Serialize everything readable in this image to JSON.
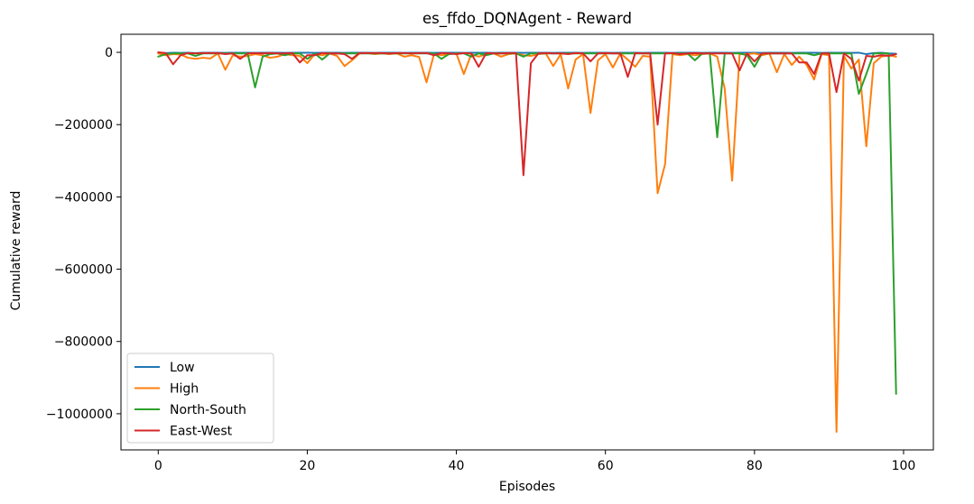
{
  "chart_data": {
    "type": "line",
    "title": "es_ffdo_DQNAgent - Reward",
    "xlabel": "Episodes",
    "ylabel": "Cumulative reward",
    "xlim": [
      -5,
      104
    ],
    "ylim": [
      -1100000,
      50000
    ],
    "xticks": [
      0,
      20,
      40,
      60,
      80,
      100
    ],
    "yticks": [
      0,
      -200000,
      -400000,
      -600000,
      -800000,
      -1000000
    ],
    "ytick_labels": [
      "0",
      "−200000",
      "−400000",
      "−600000",
      "−800000",
      "−1000000"
    ],
    "xtick_labels": [
      "0",
      "20",
      "40",
      "60",
      "80",
      "100"
    ],
    "legend_position": "lower-left",
    "grid": false,
    "series": [
      {
        "name": "Low",
        "color": "#1f77b4",
        "values": [
          -1000,
          -2000,
          -1000,
          -1500,
          -1000,
          -2000,
          -1000,
          -1000,
          -1000,
          -1500,
          -1000,
          -1000,
          -1000,
          -1500,
          -1000,
          -1000,
          -1000,
          -1500,
          -1000,
          -1000,
          -1000,
          -1500,
          -1000,
          -1000,
          -1000,
          -1500,
          -1000,
          -1000,
          -1000,
          -1500,
          -1000,
          -1000,
          -1000,
          -1500,
          -1000,
          -1000,
          -1000,
          -1500,
          -1000,
          -1000,
          -1000,
          -1500,
          -1000,
          -1000,
          -1000,
          -1500,
          -1000,
          -1000,
          -1000,
          -1500,
          -1000,
          -1000,
          -1000,
          -1500,
          -1000,
          -1000,
          -1000,
          -1500,
          -1000,
          -1000,
          -1000,
          -1500,
          -1000,
          -1000,
          -1000,
          -1500,
          -1000,
          -1000,
          -1000,
          -1500,
          -1000,
          -1000,
          -1000,
          -1500,
          -1000,
          -1000,
          -1000,
          -1500,
          -1000,
          -1000,
          -1000,
          -1500,
          -1000,
          -1000,
          -1000,
          -1500,
          -1000,
          -1000,
          -1000,
          -1500,
          -1000,
          -1000,
          -1000,
          -1500,
          -1000,
          -5000,
          -2000,
          -1000,
          -3000,
          -4000
        ]
      },
      {
        "name": "High",
        "color": "#ff7f0e",
        "values": [
          -3000,
          -8000,
          -5000,
          -6000,
          -15000,
          -18000,
          -15000,
          -17000,
          -3000,
          -48000,
          -8000,
          -12000,
          -10000,
          -5000,
          -8000,
          -15000,
          -12000,
          -5000,
          -8000,
          -10000,
          -30000,
          -5000,
          -8000,
          -3000,
          -10000,
          -38000,
          -22000,
          -3000,
          -2000,
          -5000,
          -3000,
          -5000,
          -3000,
          -12000,
          -8000,
          -13000,
          -83000,
          -5000,
          -8000,
          -5000,
          -3000,
          -60000,
          -5000,
          -12000,
          -5000,
          -3000,
          -12000,
          -5000,
          -3000,
          -8000,
          -10000,
          -5000,
          -3000,
          -38000,
          -5000,
          -100000,
          -20000,
          -5000,
          -168000,
          -22000,
          -5000,
          -42000,
          -3000,
          -20000,
          -40000,
          -10000,
          -12000,
          -390000,
          -310000,
          -5000,
          -8000,
          -5000,
          -8000,
          -5000,
          -3000,
          -12000,
          -100000,
          -355000,
          -5000,
          -5000,
          -3000,
          -8000,
          -3000,
          -55000,
          -5000,
          -35000,
          -12000,
          -35000,
          -75000,
          -5000,
          -8000,
          -1050000,
          -10000,
          -45000,
          -20000,
          -260000,
          -30000,
          -12000,
          -8000,
          -12000
        ]
      },
      {
        "name": "North-South",
        "color": "#2ca02c",
        "values": [
          -12000,
          -5000,
          -3000,
          -3000,
          -3000,
          -10000,
          -3000,
          -3000,
          -3000,
          -3000,
          -3000,
          -3000,
          -3000,
          -97000,
          -12000,
          -5000,
          -3000,
          -8000,
          -3000,
          -3000,
          -18000,
          -3000,
          -20000,
          -3000,
          -3000,
          -3000,
          -3000,
          -3000,
          -3000,
          -3000,
          -3000,
          -3000,
          -3000,
          -3000,
          -3000,
          -3000,
          -3000,
          -3000,
          -18000,
          -5000,
          -3000,
          -3000,
          -12000,
          -3000,
          -8000,
          -3000,
          -3000,
          -3000,
          -3000,
          -12000,
          -3000,
          -3000,
          -3000,
          -3000,
          -3000,
          -3000,
          -3000,
          -3000,
          -3000,
          -3000,
          -3000,
          -3000,
          -3000,
          -3000,
          -3000,
          -3000,
          -3000,
          -3000,
          -3000,
          -3000,
          -3000,
          -3000,
          -22000,
          -3000,
          -3000,
          -235000,
          -3000,
          -3000,
          -3000,
          -8000,
          -40000,
          -3000,
          -3000,
          -3000,
          -3000,
          -3000,
          -3000,
          -3000,
          -8000,
          -3000,
          -3000,
          -3000,
          -3000,
          -3000,
          -115000,
          -60000,
          -3000,
          -3000,
          -3000,
          -945000
        ]
      },
      {
        "name": "East-West",
        "color": "#d62728",
        "values": [
          0,
          -2000,
          -33000,
          -8000,
          -2000,
          -3000,
          -2000,
          -2000,
          -2000,
          -5000,
          -3000,
          -18000,
          -3000,
          -2000,
          -3000,
          -2000,
          -3000,
          -3000,
          -2000,
          -28000,
          -8000,
          -8000,
          -2000,
          -3000,
          -3000,
          -5000,
          -18000,
          -2000,
          -2000,
          -2000,
          -2000,
          -3000,
          -2000,
          -2000,
          -3000,
          -2000,
          -2000,
          -8000,
          -2000,
          -3000,
          -5000,
          -2000,
          -3000,
          -40000,
          -2000,
          -3000,
          -3000,
          -2000,
          -2000,
          -340000,
          -30000,
          -3000,
          -2000,
          -3000,
          -3000,
          -5000,
          -2000,
          -3000,
          -25000,
          -3000,
          -2000,
          -3000,
          -3000,
          -68000,
          -2000,
          -3000,
          -3000,
          -200000,
          -3000,
          -2000,
          -5000,
          -3000,
          -2000,
          -3000,
          -3000,
          -3000,
          -3000,
          -3000,
          -50000,
          -3000,
          -25000,
          -3000,
          -3000,
          -3000,
          -3000,
          -3000,
          -28000,
          -28000,
          -60000,
          -3000,
          -3000,
          -110000,
          -3000,
          -18000,
          -78000,
          -10000,
          -12000,
          -8000,
          -10000,
          -5000
        ]
      }
    ]
  }
}
